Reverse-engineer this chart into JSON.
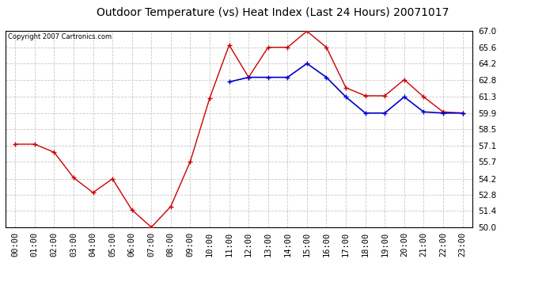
{
  "title": "Outdoor Temperature (vs) Heat Index (Last 24 Hours) 20071017",
  "copyright_text": "Copyright 2007 Cartronics.com",
  "x_labels": [
    "00:00",
    "01:00",
    "02:00",
    "03:00",
    "04:00",
    "05:00",
    "06:00",
    "07:00",
    "08:00",
    "09:00",
    "10:00",
    "11:00",
    "12:00",
    "13:00",
    "14:00",
    "15:00",
    "16:00",
    "17:00",
    "18:00",
    "19:00",
    "20:00",
    "21:00",
    "22:00",
    "23:00"
  ],
  "temp_red": [
    57.2,
    57.2,
    56.5,
    54.3,
    53.0,
    54.2,
    51.5,
    50.0,
    51.8,
    55.7,
    61.2,
    65.8,
    63.0,
    65.6,
    65.6,
    67.0,
    65.6,
    62.1,
    61.4,
    61.4,
    62.8,
    61.3,
    60.0,
    59.9
  ],
  "heat_blue": [
    null,
    null,
    null,
    null,
    null,
    null,
    null,
    null,
    null,
    null,
    null,
    62.6,
    63.0,
    63.0,
    63.0,
    64.2,
    63.0,
    61.3,
    59.9,
    59.9,
    61.3,
    60.0,
    59.9,
    59.9
  ],
  "ylim_min": 50.0,
  "ylim_max": 67.0,
  "yticks": [
    50.0,
    51.4,
    52.8,
    54.2,
    55.7,
    57.1,
    58.5,
    59.9,
    61.3,
    62.8,
    64.2,
    65.6,
    67.0
  ],
  "bg_color": "#ffffff",
  "plot_bg_color": "#ffffff",
  "grid_color": "#c8c8c8",
  "red_color": "#cc0000",
  "blue_color": "#0000cc",
  "title_fontsize": 10,
  "copyright_fontsize": 6,
  "tick_fontsize": 7.5
}
